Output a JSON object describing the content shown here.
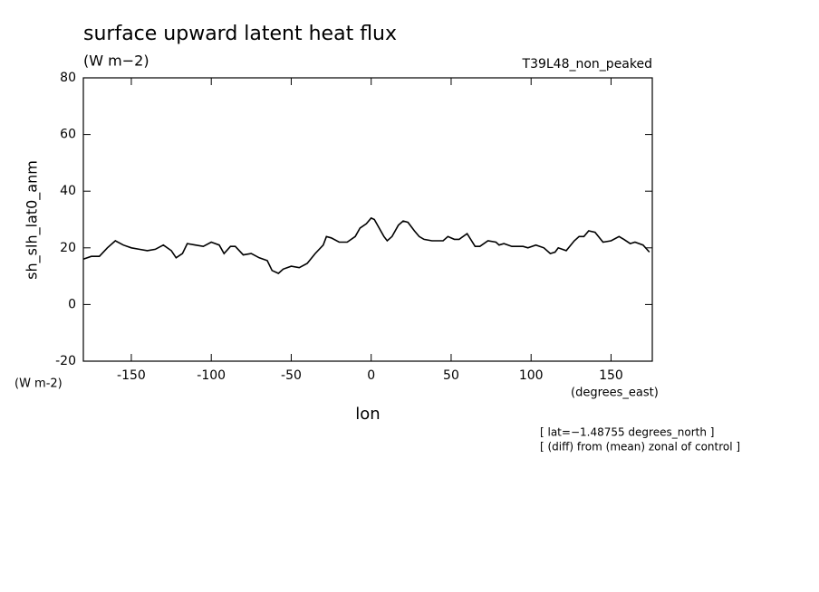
{
  "chart_data": {
    "type": "line",
    "title": "surface upward latent heat flux",
    "subtitle": "(W m−2)",
    "run_label": "T39L48_non_peaked",
    "y_label": "sh_slh_lat0_anm",
    "y_units": "(W m-2)",
    "x_label": "lon",
    "x_units": "(degrees_east)",
    "annotations": [
      "[ lat=−1.48755 degrees_north ]",
      "[ (diff) from (mean) zonal of control ]"
    ],
    "color": "#000000",
    "x": [
      -180,
      -175,
      -170,
      -165,
      -160,
      -155,
      -150,
      -145,
      -140,
      -135,
      -130,
      -125,
      -122,
      -118,
      -115,
      -110,
      -105,
      -100,
      -95,
      -92,
      -88,
      -85,
      -80,
      -75,
      -70,
      -65,
      -62,
      -58,
      -55,
      -50,
      -45,
      -40,
      -35,
      -30,
      -28,
      -25,
      -20,
      -15,
      -10,
      -7,
      -3,
      0,
      2,
      5,
      8,
      10,
      13,
      17,
      20,
      23,
      27,
      30,
      33,
      38,
      45,
      48,
      52,
      55,
      60,
      65,
      68,
      73,
      78,
      80,
      83,
      88,
      95,
      98,
      103,
      108,
      112,
      115,
      117,
      122,
      127,
      130,
      133,
      136,
      140,
      145,
      150,
      155,
      158,
      162,
      165,
      170,
      174
    ],
    "values": [
      16,
      17,
      17,
      20,
      22.5,
      21,
      20,
      19.5,
      19,
      19.5,
      21,
      19,
      16.5,
      18,
      21.5,
      21,
      20.5,
      22,
      21,
      18,
      20.5,
      20.5,
      17.5,
      18,
      16.5,
      15.5,
      12,
      11,
      12.5,
      13.5,
      13,
      14.5,
      18,
      21,
      24,
      23.5,
      22,
      22,
      24,
      27,
      28.5,
      30.5,
      30,
      27,
      24,
      22.5,
      24,
      28,
      29.5,
      29,
      26,
      24,
      23,
      22.5,
      22.5,
      24,
      23,
      23,
      25,
      20.5,
      20.5,
      22.5,
      22,
      21,
      21.5,
      20.5,
      20.5,
      20,
      21,
      20,
      18,
      18.5,
      20,
      19,
      22.5,
      24,
      24,
      26,
      25.5,
      22,
      22.5,
      24,
      23,
      21.5,
      22,
      21,
      18.5
    ],
    "xlim": [
      -180,
      175.8
    ],
    "ylim": [
      -20,
      80
    ],
    "xticks": [
      -150,
      -100,
      -50,
      0,
      50,
      100,
      150
    ],
    "yticks": [
      -20,
      0,
      20,
      40,
      60,
      80
    ]
  }
}
